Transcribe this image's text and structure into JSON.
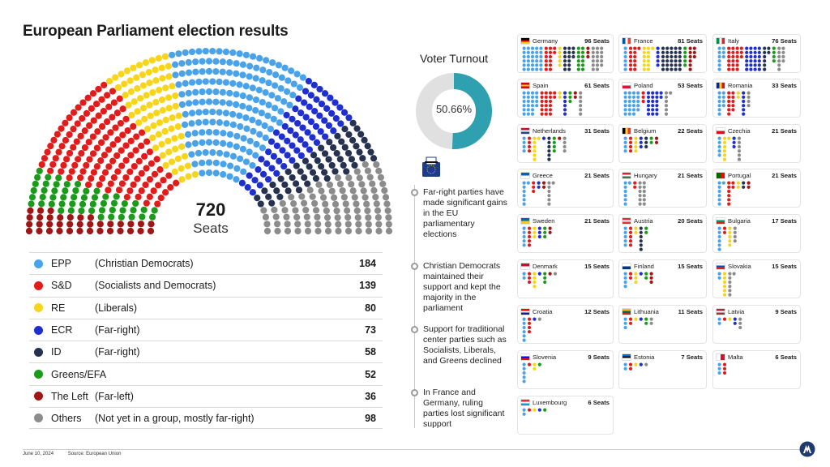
{
  "title": "European Parliament election results",
  "total": {
    "value": "720",
    "label": "Seats"
  },
  "chart_data": {
    "type": "parliament",
    "total_seats": 720,
    "groups": [
      {
        "key": "left",
        "name": "The Left",
        "desc": "(Far-left)",
        "seats": 36,
        "color": "#a01515"
      },
      {
        "key": "greens",
        "name": "Greens/EFA",
        "desc": "",
        "seats": 52,
        "color": "#1b9a1b"
      },
      {
        "key": "sd",
        "name": "S&D",
        "desc": "(Socialists and Democrats)",
        "seats": 139,
        "color": "#e21b1b"
      },
      {
        "key": "re",
        "name": "RE",
        "desc": "(Liberals)",
        "seats": 80,
        "color": "#f7d51a"
      },
      {
        "key": "epp",
        "name": "EPP",
        "desc": "(Christian Democrats)",
        "seats": 184,
        "color": "#4aa3e8"
      },
      {
        "key": "ecr",
        "name": "ECR",
        "desc": "(Far-right)",
        "seats": 73,
        "color": "#1f2ecf"
      },
      {
        "key": "id",
        "name": "ID",
        "desc": "(Far-right)",
        "seats": 58,
        "color": "#26324f"
      },
      {
        "key": "others",
        "name": "Others",
        "desc": "(Not yet in a group, mostly far-right)",
        "seats": 98,
        "color": "#8c8c8c"
      }
    ],
    "legend_order": [
      "epp",
      "sd",
      "re",
      "ecr",
      "id",
      "greens",
      "left",
      "others"
    ],
    "turnout": {
      "title": "Voter Turnout",
      "value": 50.66,
      "label": "50.66%",
      "color": "#2ea0b0",
      "rest_color": "#e0e0e0"
    },
    "countries": [
      {
        "name": "Germany",
        "seats": 96,
        "seats_label": "96 Seats",
        "flag": [
          "#000000",
          "#dd0000",
          "#ffcc00"
        ],
        "flag_dir": "h",
        "dist": {
          "epp": 30,
          "sd": 14,
          "re": 5,
          "ecr": 0,
          "id": 15,
          "greens": 12,
          "left": 3,
          "others": 17
        }
      },
      {
        "name": "France",
        "seats": 81,
        "seats_label": "81 Seats",
        "flag": [
          "#0055a4",
          "#ffffff",
          "#ef4135"
        ],
        "flag_dir": "v",
        "dist": {
          "epp": 6,
          "sd": 13,
          "re": 13,
          "ecr": 5,
          "id": 30,
          "greens": 5,
          "left": 9,
          "others": 0
        }
      },
      {
        "name": "Italy",
        "seats": 76,
        "seats_label": "76 Seats",
        "flag": [
          "#009246",
          "#ffffff",
          "#ce2b37"
        ],
        "flag_dir": "v",
        "dist": {
          "epp": 9,
          "sd": 21,
          "re": 0,
          "ecr": 24,
          "id": 8,
          "greens": 4,
          "left": 0,
          "others": 10
        }
      },
      {
        "name": "Spain",
        "seats": 61,
        "seats_label": "61 Seats",
        "flag": [
          "#c60b1e",
          "#ffc400",
          "#c60b1e"
        ],
        "flag_dir": "h",
        "dist": {
          "epp": 22,
          "sd": 20,
          "re": 2,
          "ecr": 6,
          "id": 0,
          "greens": 3,
          "left": 2,
          "others": 6
        }
      },
      {
        "name": "Poland",
        "seats": 53,
        "seats_label": "53 Seats",
        "flag": [
          "#ffffff",
          "#dc143c"
        ],
        "flag_dir": "h",
        "dist": {
          "epp": 23,
          "sd": 3,
          "re": 0,
          "ecr": 20,
          "id": 0,
          "greens": 0,
          "left": 0,
          "others": 7
        }
      },
      {
        "name": "Romania",
        "seats": 33,
        "seats_label": "33 Seats",
        "flag": [
          "#002b7f",
          "#fcd116",
          "#ce1126"
        ],
        "flag_dir": "v",
        "dist": {
          "epp": 10,
          "sd": 11,
          "re": 2,
          "ecr": 6,
          "id": 0,
          "greens": 0,
          "left": 0,
          "others": 4
        }
      },
      {
        "name": "Netherlands",
        "seats": 31,
        "seats_label": "31 Seats",
        "flag": [
          "#ae1c28",
          "#ffffff",
          "#21468b"
        ],
        "flag_dir": "h",
        "dist": {
          "epp": 4,
          "sd": 4,
          "re": 7,
          "ecr": 1,
          "id": 6,
          "greens": 4,
          "left": 1,
          "others": 4
        }
      },
      {
        "name": "Belgium",
        "seats": 22,
        "seats_label": "22 Seats",
        "flag": [
          "#000000",
          "#fdda24",
          "#ef3340"
        ],
        "flag_dir": "v",
        "dist": {
          "epp": 4,
          "sd": 4,
          "re": 4,
          "ecr": 3,
          "id": 3,
          "greens": 2,
          "left": 2,
          "others": 0
        }
      },
      {
        "name": "Czechia",
        "seats": 21,
        "seats_label": "21 Seats",
        "flag": [
          "#ffffff",
          "#d7141a"
        ],
        "flag_dir": "h",
        "dist": {
          "epp": 5,
          "sd": 0,
          "re": 7,
          "ecr": 3,
          "id": 0,
          "greens": 0,
          "left": 0,
          "others": 6
        }
      },
      {
        "name": "Greece",
        "seats": 21,
        "seats_label": "21 Seats",
        "flag": [
          "#0d5eaf",
          "#ffffff"
        ],
        "flag_dir": "h",
        "dist": {
          "epp": 7,
          "sd": 3,
          "re": 0,
          "ecr": 2,
          "id": 0,
          "greens": 0,
          "left": 2,
          "others": 7
        }
      },
      {
        "name": "Hungary",
        "seats": 21,
        "seats_label": "21 Seats",
        "flag": [
          "#ce2939",
          "#ffffff",
          "#477050"
        ],
        "flag_dir": "h",
        "dist": {
          "epp": 7,
          "sd": 2,
          "re": 0,
          "ecr": 0,
          "id": 0,
          "greens": 0,
          "left": 0,
          "others": 12
        }
      },
      {
        "name": "Portugal",
        "seats": 21,
        "seats_label": "21 Seats",
        "flag": [
          "#006600",
          "#ff0000"
        ],
        "flag_dir": "v",
        "dist": {
          "epp": 7,
          "sd": 8,
          "re": 2,
          "ecr": 0,
          "id": 2,
          "greens": 0,
          "left": 2,
          "others": 0
        }
      },
      {
        "name": "Sweden",
        "seats": 21,
        "seats_label": "21 Seats",
        "flag": [
          "#006aa7",
          "#fecc00"
        ],
        "flag_dir": "h",
        "dist": {
          "epp": 5,
          "sd": 5,
          "re": 3,
          "ecr": 3,
          "id": 0,
          "greens": 3,
          "left": 2,
          "others": 0
        }
      },
      {
        "name": "Austria",
        "seats": 20,
        "seats_label": "20 Seats",
        "flag": [
          "#ed2939",
          "#ffffff",
          "#ed2939"
        ],
        "flag_dir": "h",
        "dist": {
          "epp": 5,
          "sd": 5,
          "re": 2,
          "ecr": 0,
          "id": 6,
          "greens": 2,
          "left": 0,
          "others": 0
        }
      },
      {
        "name": "Bulgaria",
        "seats": 17,
        "seats_label": "17 Seats",
        "flag": [
          "#ffffff",
          "#00966e",
          "#d62612"
        ],
        "flag_dir": "h",
        "dist": {
          "epp": 6,
          "sd": 2,
          "re": 5,
          "ecr": 0,
          "id": 0,
          "greens": 0,
          "left": 0,
          "others": 4
        }
      },
      {
        "name": "Denmark",
        "seats": 15,
        "seats_label": "15 Seats",
        "flag": [
          "#c8102e",
          "#ffffff"
        ],
        "flag_dir": "h",
        "dist": {
          "epp": 2,
          "sd": 3,
          "re": 4,
          "ecr": 1,
          "id": 0,
          "greens": 3,
          "left": 1,
          "others": 1
        }
      },
      {
        "name": "Finland",
        "seats": 15,
        "seats_label": "15 Seats",
        "flag": [
          "#ffffff",
          "#003580"
        ],
        "flag_dir": "h",
        "dist": {
          "epp": 4,
          "sd": 2,
          "re": 3,
          "ecr": 1,
          "id": 0,
          "greens": 2,
          "left": 3,
          "others": 0
        }
      },
      {
        "name": "Slovakia",
        "seats": 15,
        "seats_label": "15 Seats",
        "flag": [
          "#ffffff",
          "#0b4ea2",
          "#ee1c25"
        ],
        "flag_dir": "h",
        "dist": {
          "epp": 2,
          "sd": 0,
          "re": 6,
          "ecr": 0,
          "id": 0,
          "greens": 0,
          "left": 0,
          "others": 7
        }
      },
      {
        "name": "Croatia",
        "seats": 12,
        "seats_label": "12 Seats",
        "flag": [
          "#ff0000",
          "#ffffff",
          "#171796"
        ],
        "flag_dir": "h",
        "dist": {
          "epp": 6,
          "sd": 4,
          "re": 0,
          "ecr": 1,
          "id": 0,
          "greens": 0,
          "left": 0,
          "others": 1
        }
      },
      {
        "name": "Lithuania",
        "seats": 11,
        "seats_label": "11 Seats",
        "flag": [
          "#fdb913",
          "#006a44",
          "#c1272d"
        ],
        "flag_dir": "h",
        "dist": {
          "epp": 3,
          "sd": 2,
          "re": 1,
          "ecr": 1,
          "id": 0,
          "greens": 2,
          "left": 0,
          "others": 2
        }
      },
      {
        "name": "Latvia",
        "seats": 9,
        "seats_label": "9 Seats",
        "flag": [
          "#9e3039",
          "#ffffff",
          "#9e3039"
        ],
        "flag_dir": "h",
        "dist": {
          "epp": 2,
          "sd": 1,
          "re": 1,
          "ecr": 2,
          "id": 0,
          "greens": 0,
          "left": 0,
          "others": 3
        }
      },
      {
        "name": "Slovenia",
        "seats": 9,
        "seats_label": "9 Seats",
        "flag": [
          "#ffffff",
          "#0000ff",
          "#ff0000"
        ],
        "flag_dir": "h",
        "dist": {
          "epp": 5,
          "sd": 1,
          "re": 2,
          "ecr": 0,
          "id": 0,
          "greens": 1,
          "left": 0,
          "others": 0
        }
      },
      {
        "name": "Estonia",
        "seats": 7,
        "seats_label": "7 Seats",
        "flag": [
          "#0072ce",
          "#000000",
          "#ffffff"
        ],
        "flag_dir": "h",
        "dist": {
          "epp": 2,
          "sd": 2,
          "re": 1,
          "ecr": 1,
          "id": 0,
          "greens": 0,
          "left": 0,
          "others": 1
        }
      },
      {
        "name": "Malta",
        "seats": 6,
        "seats_label": "6 Seats",
        "flag": [
          "#ffffff",
          "#cf142b"
        ],
        "flag_dir": "v",
        "dist": {
          "epp": 3,
          "sd": 3,
          "re": 0,
          "ecr": 0,
          "id": 0,
          "greens": 0,
          "left": 0,
          "others": 0
        }
      },
      {
        "name": "Luxembourg",
        "seats": 6,
        "seats_label": "6 Seats",
        "flag": [
          "#ed2939",
          "#ffffff",
          "#00a1de"
        ],
        "flag_dir": "h",
        "dist": {
          "epp": 2,
          "sd": 1,
          "re": 1,
          "ecr": 1,
          "id": 0,
          "greens": 1,
          "left": 0,
          "others": 0
        }
      }
    ]
  },
  "notes": [
    "Far-right parties have made significant gains in the EU parliamentary elections",
    "Christian Democrats maintained their support and kept the majority in the parliament",
    "Support for traditional center parties such as Socialists, Liberals, and Greens declined",
    "In France and Germany, ruling parties lost significant support"
  ],
  "footer": {
    "date": "June 10, 2024",
    "source": "Source: European Union"
  },
  "icons": {
    "ballot": "ballot-box-icon",
    "logo": "agency-logo-icon"
  }
}
